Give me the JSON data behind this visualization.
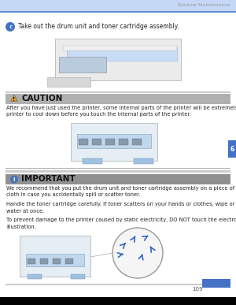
{
  "page_bg": "#ffffff",
  "header_bar_color": "#c5d9f7",
  "header_line_color": "#5b8fd4",
  "header_text": "Routine Maintenance",
  "header_text_color": "#999999",
  "header_text_size": 4.5,
  "step_bullet_color": "#4472c4",
  "step_number": "c",
  "step_text": "Take out the drum unit and toner cartridge assembly.",
  "step_text_size": 5.5,
  "step_text_color": "#222222",
  "caution_bar_color": "#b0b0b0",
  "caution_title": "CAUTION",
  "caution_title_size": 7.5,
  "caution_title_color": "#111111",
  "caution_icon_color": "#e8a020",
  "caution_text": "After you have just used the printer, some internal parts of the printer will be extremely hot. Wait for the\nprinter to cool down before you touch the internal parts of the printer.",
  "caution_text_size": 4.8,
  "caution_text_color": "#222222",
  "sep_color": "#cccccc",
  "important_bar_color": "#909090",
  "important_title": "IMPORTANT",
  "important_title_size": 7.5,
  "important_title_color": "#111111",
  "important_icon_color": "#4472c4",
  "important_text1": "We recommend that you put the drum unit and toner cartridge assembly on a piece of disposable paper or\ncloth in case you accidentally spill or scatter toner.",
  "important_text2": "Handle the toner cartridge carefully. If toner scatters on your hands or clothes, wipe or wash it off with cold\nwater at once.",
  "important_text3": "To prevent damage to the printer caused by static electricity, DO NOT touch the electrodes shown in the\nillustration.",
  "important_text_size": 4.8,
  "important_text_color": "#222222",
  "tab_color": "#4472c4",
  "tab_number": "6",
  "page_number": "109",
  "page_number_size": 5.0,
  "page_number_color": "#555555",
  "footer_bar_color": "#000000"
}
